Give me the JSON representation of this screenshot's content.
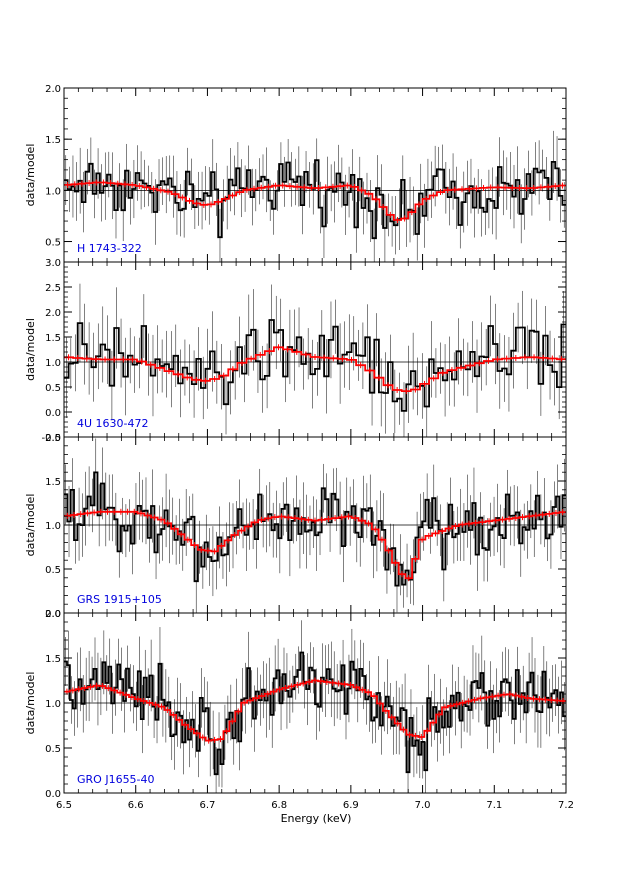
{
  "figure": {
    "xlabel": "Energy (keV)",
    "x_ticks": [
      "6.5",
      "6.6",
      "6.7",
      "6.8",
      "6.9",
      "7.0",
      "7.1",
      "7.2"
    ],
    "colors": {
      "data": "#000000",
      "model": "#ff0000",
      "label": "#0000dd",
      "axes": "#000000"
    }
  },
  "chart_data": [
    {
      "type": "line",
      "panel_label": "H 1743-322",
      "ylabel": "data/model",
      "xlim": [
        6.5,
        7.2
      ],
      "ylim": [
        0.3,
        2.0
      ],
      "yticks": [
        "0.5",
        "1.0",
        "1.5",
        "2.0"
      ],
      "ytick_values": [
        0.5,
        1.0,
        1.5,
        2.0
      ],
      "reference_line": 1.0,
      "model_x": [
        6.5,
        6.55,
        6.6,
        6.65,
        6.68,
        6.7,
        6.72,
        6.75,
        6.8,
        6.85,
        6.9,
        6.93,
        6.95,
        6.96,
        6.97,
        6.98,
        7.0,
        7.03,
        7.1,
        7.15,
        7.2
      ],
      "model_y": [
        1.05,
        1.08,
        1.05,
        0.98,
        0.88,
        0.85,
        0.9,
        1.0,
        1.05,
        1.02,
        1.05,
        0.95,
        0.8,
        0.72,
        0.7,
        0.75,
        0.9,
        1.0,
        1.03,
        1.02,
        1.05
      ],
      "noise": 0.22,
      "n_bins": 140
    },
    {
      "type": "line",
      "panel_label": "4U 1630-472",
      "ylabel": "data/model",
      "xlim": [
        6.5,
        7.2
      ],
      "ylim": [
        -0.5,
        3.0
      ],
      "yticks": [
        "-0.5",
        "0.0",
        "0.5",
        "1.0",
        "1.5",
        "2.0",
        "2.5",
        "3.0"
      ],
      "ytick_values": [
        -0.5,
        0.0,
        0.5,
        1.0,
        1.5,
        2.0,
        2.5,
        3.0
      ],
      "reference_line": 1.0,
      "model_x": [
        6.5,
        6.55,
        6.6,
        6.65,
        6.68,
        6.7,
        6.72,
        6.75,
        6.8,
        6.85,
        6.9,
        6.93,
        6.95,
        6.97,
        6.99,
        7.03,
        7.1,
        7.15,
        7.2
      ],
      "model_y": [
        1.1,
        1.05,
        1.05,
        0.8,
        0.65,
        0.62,
        0.7,
        1.0,
        1.3,
        1.1,
        1.05,
        0.8,
        0.55,
        0.4,
        0.45,
        0.8,
        1.05,
        1.1,
        1.05
      ],
      "noise": 0.55,
      "n_bins": 110
    },
    {
      "type": "line",
      "panel_label": "GRS 1915+105",
      "ylabel": "data/model",
      "xlim": [
        6.5,
        7.2
      ],
      "ylim": [
        0.0,
        2.0
      ],
      "yticks": [
        "0.0",
        "0.5",
        "1.0",
        "1.5",
        "2.0"
      ],
      "ytick_values": [
        0.0,
        0.5,
        1.0,
        1.5,
        2.0
      ],
      "reference_line": 1.0,
      "model_x": [
        6.5,
        6.55,
        6.6,
        6.64,
        6.67,
        6.69,
        6.71,
        6.74,
        6.77,
        6.8,
        6.85,
        6.9,
        6.93,
        6.95,
        6.97,
        6.98,
        7.0,
        7.05,
        7.1,
        7.15,
        7.2
      ],
      "model_y": [
        1.1,
        1.15,
        1.15,
        1.05,
        0.85,
        0.72,
        0.7,
        0.9,
        1.05,
        1.1,
        1.05,
        1.1,
        1.0,
        0.75,
        0.45,
        0.38,
        0.85,
        1.0,
        1.05,
        1.1,
        1.15
      ],
      "noise": 0.28,
      "n_bins": 150
    },
    {
      "type": "line",
      "panel_label": "GRO J1655-40",
      "ylabel": "data/model",
      "xlim": [
        6.5,
        7.2
      ],
      "ylim": [
        0.0,
        2.0
      ],
      "yticks": [
        "0.0",
        "0.5",
        "1.0",
        "1.5",
        "2.0"
      ],
      "ytick_values": [
        0.0,
        0.5,
        1.0,
        1.5,
        2.0
      ],
      "reference_line": 1.0,
      "model_x": [
        6.5,
        6.55,
        6.6,
        6.64,
        6.67,
        6.7,
        6.72,
        6.75,
        6.8,
        6.85,
        6.9,
        6.93,
        6.95,
        6.98,
        7.0,
        7.03,
        7.08,
        7.12,
        7.15,
        7.2
      ],
      "model_y": [
        1.12,
        1.2,
        1.05,
        0.95,
        0.75,
        0.58,
        0.6,
        1.0,
        1.15,
        1.25,
        1.2,
        1.1,
        0.9,
        0.65,
        0.62,
        0.95,
        1.05,
        1.1,
        1.05,
        1.02
      ],
      "noise": 0.28,
      "n_bins": 170
    }
  ]
}
